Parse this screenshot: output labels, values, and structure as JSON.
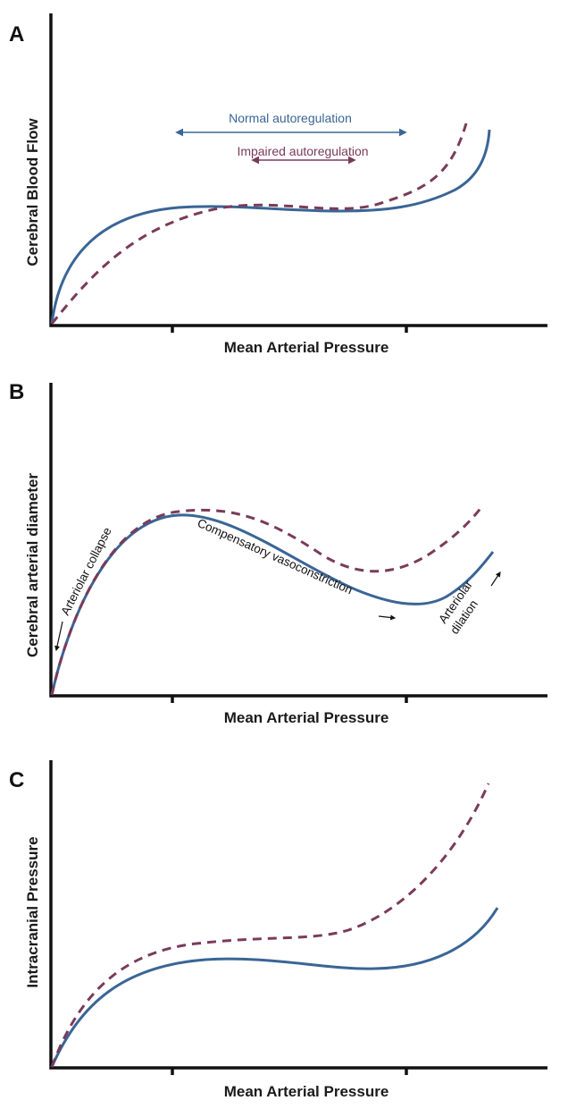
{
  "colors": {
    "normal": "#3a6595",
    "impaired": "#7a3b5a",
    "axis": "#111111"
  },
  "panels": [
    {
      "letter": "A",
      "ylabel": "Cerebral Blood Flow",
      "xlabel": "Mean Arterial Pressure",
      "normal_range_label": "Normal autoregulation",
      "impaired_range_label": "Impaired autoregulation"
    },
    {
      "letter": "B",
      "ylabel": "Cerebral arterial diameter",
      "xlabel": "Mean Arterial Pressure",
      "annotations": {
        "collapse": "Arteriolar collapse",
        "vasoconstriction": "Compensatory vasoconstriction",
        "dilation_line1": "Arteriolar",
        "dilation_line2": "dilation"
      }
    },
    {
      "letter": "C",
      "ylabel": "Intracranial Pressure",
      "xlabel": "Mean Arterial Pressure"
    }
  ]
}
